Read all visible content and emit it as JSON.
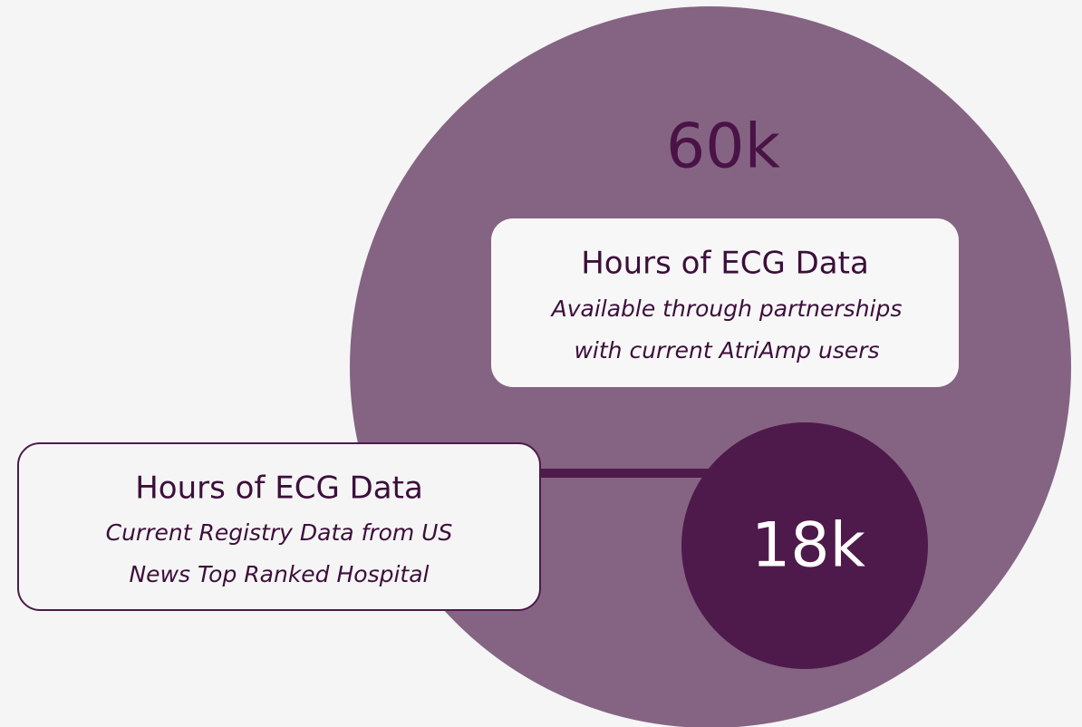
{
  "large": {
    "value": "60k",
    "label": "Hours of ECG Data",
    "description": [
      "Available through partnerships",
      "with current AtriAmp users"
    ]
  },
  "small": {
    "value": "18k",
    "label": "Hours of ECG Data",
    "description": [
      "Current Registry Data from US",
      "News Top Ranked Hospital"
    ]
  }
}
